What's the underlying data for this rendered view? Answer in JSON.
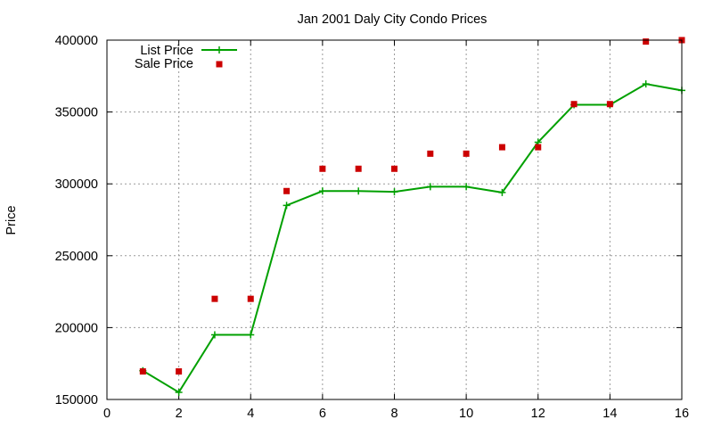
{
  "chart_data": {
    "type": "line",
    "title": "Jan 2001 Daly City Condo Prices",
    "xlabel": "",
    "ylabel": "Price",
    "xlim": [
      0,
      16
    ],
    "ylim": [
      150000,
      400000
    ],
    "xticks": [
      0,
      2,
      4,
      6,
      8,
      10,
      12,
      14,
      16
    ],
    "yticks": [
      150000,
      200000,
      250000,
      300000,
      350000,
      400000
    ],
    "grid": true,
    "legend_position": "top-left",
    "series": [
      {
        "name": "List Price",
        "type": "line",
        "marker": "plus",
        "color": "#00a000",
        "x": [
          1,
          2,
          3,
          4,
          5,
          6,
          7,
          8,
          9,
          10,
          11,
          12,
          13,
          14,
          15,
          16
        ],
        "y": [
          170000,
          155000,
          195000,
          195000,
          285000,
          295000,
          295000,
          294500,
          298000,
          298000,
          294000,
          329000,
          355000,
          355000,
          369500,
          365000
        ]
      },
      {
        "name": "Sale Price",
        "type": "scatter",
        "marker": "square",
        "color": "#cc0000",
        "x": [
          1,
          2,
          3,
          4,
          5,
          6,
          7,
          8,
          9,
          10,
          11,
          12,
          13,
          14,
          15,
          16
        ],
        "y": [
          169500,
          169500,
          220000,
          220000,
          295000,
          310500,
          310500,
          310500,
          321000,
          321000,
          325500,
          325500,
          355500,
          355500,
          399000,
          400000
        ]
      }
    ]
  }
}
